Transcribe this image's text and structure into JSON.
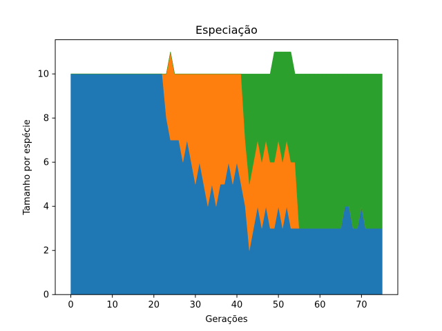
{
  "chart_data": {
    "type": "area",
    "title": "Especiação",
    "xlabel": "Gerações",
    "ylabel": "Tamanho por espécie",
    "xlim": [
      -3.75,
      78.75
    ],
    "ylim": [
      0,
      11.55
    ],
    "x_ticks": [
      0,
      10,
      20,
      30,
      40,
      50,
      60,
      70
    ],
    "y_ticks": [
      0,
      2,
      4,
      6,
      8,
      10
    ],
    "stacked": true,
    "grid": false,
    "x": [
      0,
      1,
      2,
      3,
      4,
      5,
      6,
      7,
      8,
      9,
      10,
      11,
      12,
      13,
      14,
      15,
      16,
      17,
      18,
      19,
      20,
      21,
      22,
      23,
      24,
      25,
      26,
      27,
      28,
      29,
      30,
      31,
      32,
      33,
      34,
      35,
      36,
      37,
      38,
      39,
      40,
      41,
      42,
      43,
      44,
      45,
      46,
      47,
      48,
      49,
      50,
      51,
      52,
      53,
      54,
      55,
      56,
      57,
      58,
      59,
      60,
      61,
      62,
      63,
      64,
      65,
      66,
      67,
      68,
      69,
      70,
      71,
      72,
      73,
      74,
      75
    ],
    "series": [
      {
        "color": "#1f77b4",
        "values": [
          10,
          10,
          10,
          10,
          10,
          10,
          10,
          10,
          10,
          10,
          10,
          10,
          10,
          10,
          10,
          10,
          10,
          10,
          10,
          10,
          10,
          10,
          10,
          8,
          7,
          7,
          7,
          6,
          7,
          6,
          5,
          6,
          5,
          4,
          5,
          4,
          5,
          5,
          6,
          5,
          6,
          5,
          4,
          2,
          3,
          4,
          3,
          4,
          3,
          3,
          4,
          3,
          4,
          3,
          3,
          3,
          3,
          3,
          3,
          3,
          3,
          3,
          3,
          3,
          3,
          3,
          4,
          4,
          3,
          3,
          4,
          3,
          3,
          3,
          3,
          3
        ]
      },
      {
        "color": "#ff7f0e",
        "values": [
          0,
          0,
          0,
          0,
          0,
          0,
          0,
          0,
          0,
          0,
          0,
          0,
          0,
          0,
          0,
          0,
          0,
          0,
          0,
          0,
          0,
          0,
          0,
          2,
          4,
          3,
          3,
          4,
          3,
          4,
          5,
          4,
          5,
          6,
          5,
          6,
          5,
          5,
          4,
          5,
          4,
          5,
          3,
          3,
          3,
          3,
          3,
          3,
          3,
          3,
          3,
          3,
          3,
          3,
          3,
          0,
          0,
          0,
          0,
          0,
          0,
          0,
          0,
          0,
          0,
          0,
          0,
          0,
          0,
          0,
          0,
          0,
          0,
          0,
          0,
          0
        ]
      },
      {
        "color": "#2ca02c",
        "values": [
          0,
          0,
          0,
          0,
          0,
          0,
          0,
          0,
          0,
          0,
          0,
          0,
          0,
          0,
          0,
          0,
          0,
          0,
          0,
          0,
          0,
          0,
          0,
          0,
          0,
          0,
          0,
          0,
          0,
          0,
          0,
          0,
          0,
          0,
          0,
          0,
          0,
          0,
          0,
          0,
          0,
          0,
          3,
          5,
          4,
          3,
          4,
          3,
          4,
          5,
          4,
          5,
          4,
          5,
          4,
          7,
          7,
          7,
          7,
          7,
          7,
          7,
          7,
          7,
          7,
          7,
          6,
          6,
          7,
          7,
          6,
          7,
          7,
          7,
          7,
          7
        ]
      }
    ]
  }
}
